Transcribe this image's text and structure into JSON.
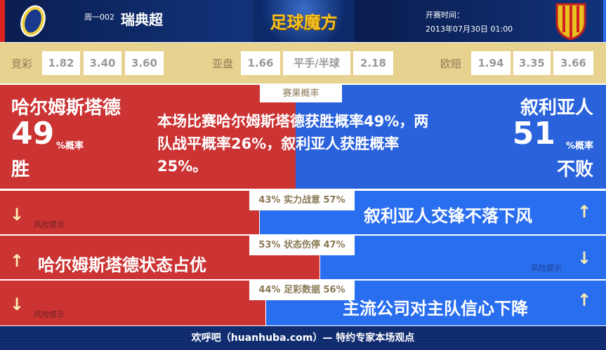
{
  "header": {
    "match_no": "周一002",
    "league": "瑞典超",
    "brand": "足球魔方",
    "kickoff_label": "开赛时间：",
    "kickoff_time": "2013年07月30日 01:00",
    "home_logo": "HBK-crest",
    "away_logo": "Syrianska-crest"
  },
  "odds": {
    "jingcai": {
      "label": "竞彩",
      "values": [
        "1.82",
        "3.40",
        "3.60"
      ]
    },
    "asian": {
      "label": "亚盘",
      "values": [
        "1.66",
        "平手/半球",
        "2.18"
      ]
    },
    "euro": {
      "label": "欧赔",
      "values": [
        "1.94",
        "3.35",
        "3.66"
      ]
    }
  },
  "result": {
    "tag": "赛果概率",
    "home_team": "哈尔姆斯塔德",
    "home_pct": "49",
    "home_pct_unit": "%概率",
    "home_outcome": "胜",
    "away_team": "叙利亚人",
    "away_pct": "51",
    "away_pct_unit": "%概率",
    "away_outcome": "不败",
    "summary": "本场比赛哈尔姆斯塔德获胜概率49%，两队战平概率26%，叙利亚人获胜概率25%。",
    "home_share": 49
  },
  "factors": [
    {
      "tag": "43% 实力战意 57%",
      "home": 43,
      "away": 57,
      "home_text": "风险提示",
      "home_arrow": "down",
      "away_text": "叙利亚人交锋不落下风",
      "away_arrow": "up"
    },
    {
      "tag": "53% 状态伤停 47%",
      "home": 53,
      "away": 47,
      "home_text": "哈尔姆斯塔德状态占优",
      "home_arrow": "up",
      "away_text": "风险提示",
      "away_arrow": "down"
    },
    {
      "tag": "44% 足彩数据 56%",
      "home": 44,
      "away": 56,
      "home_text": "风险提示",
      "home_arrow": "down",
      "away_text": "主流公司对主队信心下降",
      "away_arrow": "up"
    }
  ],
  "footer": {
    "text": "欢呼吧（huanhuba.com）— 特约专家本场观点"
  },
  "colors": {
    "home": "#cc3333",
    "away": "#2a6ef0",
    "odds_bg": "#e8d28f",
    "header": "#0e2a6a"
  }
}
